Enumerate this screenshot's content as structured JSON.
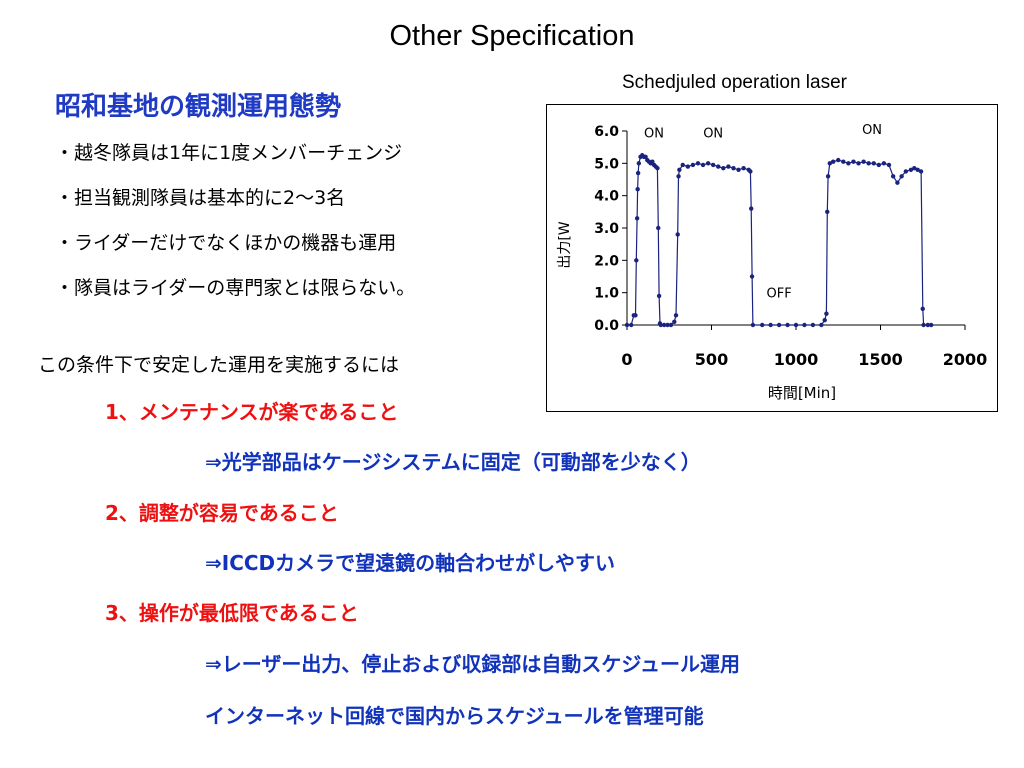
{
  "slide": {
    "title": "Other Specification",
    "subheading": "昭和基地の観測運用態勢",
    "bullets": [
      "・越冬隊員は1年に1度メンバーチェンジ",
      "・担当観測隊員は基本的に2〜3名",
      "・ライダーだけでなくほかの機器も運用",
      "・隊員はライダーの専門家とは限らない。"
    ],
    "condition": "この条件下で安定した運用を実施するには",
    "requirements": [
      {
        "text": "1、メンテナンスが楽であること",
        "detail": [
          "⇒光学部品はケージシステムに固定（可動部を少なく）"
        ]
      },
      {
        "text": "2、調整が容易であること",
        "detail": [
          "⇒ICCDカメラで望遠鏡の軸合わせがしやすい"
        ]
      },
      {
        "text": "3、操作が最低限であること",
        "detail": [
          "⇒レーザー出力、停止および収録部は自動スケジュール運用",
          "インターネット回線で国内からスケジュールを管理可能"
        ]
      }
    ],
    "colors": {
      "subheading": "#1f3bc4",
      "requirement": "#ee1111",
      "detail": "#1133bb",
      "series": "#1a237e"
    }
  },
  "chart_data": {
    "type": "scatter",
    "title": "Schedjuled operation laser",
    "xlabel": "時間[Min]",
    "ylabel": "出力[W",
    "xlim": [
      0,
      2000
    ],
    "ylim": [
      0,
      6
    ],
    "xticks": [
      "0",
      "500",
      "1000",
      "1500",
      "2000"
    ],
    "yticks": [
      "0.0",
      "1.0",
      "2.0",
      "3.0",
      "4.0",
      "5.0",
      "6.0"
    ],
    "grid": false,
    "annotations": [
      {
        "text": "ON",
        "x": 160,
        "y": 5.8
      },
      {
        "text": "ON",
        "x": 510,
        "y": 5.8
      },
      {
        "text": "ON",
        "x": 1450,
        "y": 5.9
      },
      {
        "text": "OFF",
        "x": 900,
        "y": 0.85
      }
    ],
    "series": [
      {
        "points": [
          [
            0,
            0.0
          ],
          [
            25,
            0.0
          ],
          [
            40,
            0.3
          ],
          [
            50,
            0.3
          ],
          [
            55,
            2.0
          ],
          [
            60,
            3.3
          ],
          [
            63,
            4.2
          ],
          [
            66,
            4.7
          ],
          [
            70,
            5.0
          ],
          [
            80,
            5.2
          ],
          [
            90,
            5.25
          ],
          [
            100,
            5.2
          ],
          [
            110,
            5.2
          ],
          [
            120,
            5.1
          ],
          [
            130,
            5.05
          ],
          [
            140,
            5.0
          ],
          [
            150,
            5.05
          ],
          [
            160,
            4.95
          ],
          [
            170,
            4.9
          ],
          [
            180,
            4.85
          ],
          [
            185,
            3.0
          ],
          [
            190,
            0.9
          ],
          [
            195,
            0.05
          ],
          [
            200,
            0.0
          ],
          [
            220,
            0.0
          ],
          [
            240,
            0.0
          ],
          [
            260,
            0.0
          ],
          [
            280,
            0.1
          ],
          [
            290,
            0.3
          ],
          [
            300,
            2.8
          ],
          [
            305,
            4.6
          ],
          [
            310,
            4.8
          ],
          [
            330,
            4.95
          ],
          [
            360,
            4.9
          ],
          [
            390,
            4.95
          ],
          [
            420,
            5.0
          ],
          [
            450,
            4.95
          ],
          [
            480,
            5.0
          ],
          [
            510,
            4.95
          ],
          [
            540,
            4.9
          ],
          [
            570,
            4.85
          ],
          [
            600,
            4.9
          ],
          [
            630,
            4.85
          ],
          [
            660,
            4.8
          ],
          [
            690,
            4.85
          ],
          [
            720,
            4.8
          ],
          [
            730,
            4.75
          ],
          [
            735,
            3.6
          ],
          [
            740,
            1.5
          ],
          [
            745,
            0.0
          ],
          [
            800,
            0.0
          ],
          [
            850,
            0.0
          ],
          [
            900,
            0.0
          ],
          [
            950,
            0.0
          ],
          [
            1000,
            0.0
          ],
          [
            1050,
            0.0
          ],
          [
            1100,
            0.0
          ],
          [
            1150,
            0.0
          ],
          [
            1170,
            0.15
          ],
          [
            1180,
            0.35
          ],
          [
            1185,
            3.5
          ],
          [
            1190,
            4.6
          ],
          [
            1200,
            5.0
          ],
          [
            1220,
            5.05
          ],
          [
            1250,
            5.1
          ],
          [
            1280,
            5.05
          ],
          [
            1310,
            5.0
          ],
          [
            1340,
            5.05
          ],
          [
            1370,
            5.0
          ],
          [
            1400,
            5.05
          ],
          [
            1430,
            5.0
          ],
          [
            1460,
            5.0
          ],
          [
            1490,
            4.95
          ],
          [
            1520,
            5.0
          ],
          [
            1550,
            4.95
          ],
          [
            1575,
            4.6
          ],
          [
            1600,
            4.4
          ],
          [
            1625,
            4.6
          ],
          [
            1650,
            4.75
          ],
          [
            1680,
            4.8
          ],
          [
            1700,
            4.85
          ],
          [
            1720,
            4.8
          ],
          [
            1740,
            4.75
          ],
          [
            1750,
            0.5
          ],
          [
            1755,
            0.0
          ],
          [
            1780,
            0.0
          ],
          [
            1800,
            0.0
          ]
        ]
      }
    ]
  }
}
